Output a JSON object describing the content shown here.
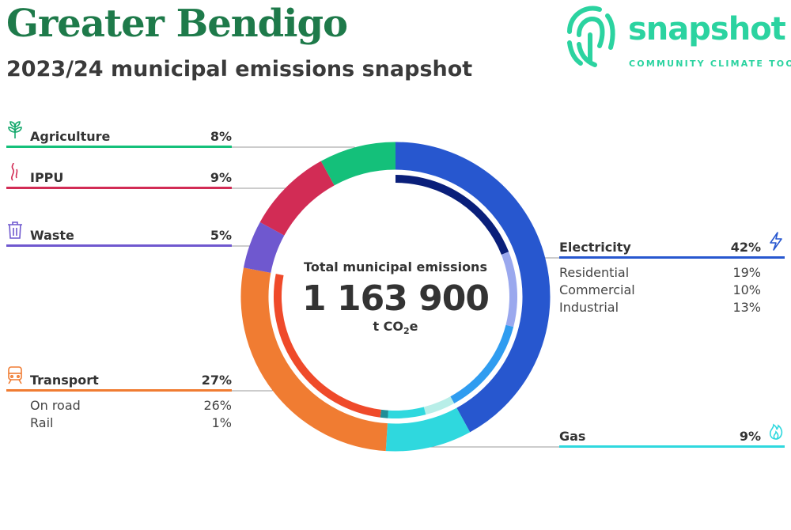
{
  "header": {
    "title": "Greater Bendigo",
    "subtitle": "2023/24 municipal emissions snapshot"
  },
  "logo": {
    "word": "snapshot",
    "tagline": "COMMUNITY CLIMATE TOOL",
    "icon": "fingerprint-icon",
    "color": "#2bd3a0"
  },
  "center": {
    "label": "Total municipal emissions",
    "value": "1 163 900",
    "unit_prefix": "t CO",
    "unit_sub": "2",
    "unit_suffix": "e"
  },
  "chart_data": {
    "type": "donut",
    "title": "2023/24 municipal emissions snapshot",
    "total": "1 163 900",
    "unit": "t CO2e",
    "sectors": [
      {
        "name": "Electricity",
        "percent": 42,
        "color": "#2757cf",
        "icon": "lightning-icon",
        "subsectors": [
          {
            "name": "Residential",
            "percent": 19,
            "color": "#0a1f7a"
          },
          {
            "name": "Commercial",
            "percent": 10,
            "color": "#9aa8ee"
          },
          {
            "name": "Industrial",
            "percent": 13,
            "color": "#2f9cf0"
          }
        ]
      },
      {
        "name": "Gas",
        "percent": 9,
        "color": "#2fd8de",
        "icon": "flame-icon",
        "subsectors": [
          {
            "name": "",
            "percent": 4,
            "color": "#b8eee8"
          },
          {
            "name": "",
            "percent": 5,
            "color": "#2fd8de"
          }
        ]
      },
      {
        "name": "Transport",
        "percent": 27,
        "color": "#f07c32",
        "icon": "train-icon",
        "subsectors": [
          {
            "name": "Rail",
            "percent": 1,
            "color": "#1f8f98"
          },
          {
            "name": "On road",
            "percent": 26,
            "color": "#ef4a2a"
          }
        ]
      },
      {
        "name": "Waste",
        "percent": 5,
        "color": "#6f58cf",
        "icon": "bin-icon",
        "subsectors": []
      },
      {
        "name": "IPPU",
        "percent": 9,
        "color": "#d22c55",
        "icon": "smoke-icon",
        "subsectors": []
      },
      {
        "name": "Agriculture",
        "percent": 8,
        "color": "#14c07a",
        "icon": "sprout-icon",
        "subsectors": []
      }
    ]
  },
  "legend": {
    "agriculture": {
      "label": "Agriculture",
      "pct": "8%"
    },
    "ippu": {
      "label": "IPPU",
      "pct": "9%"
    },
    "waste": {
      "label": "Waste",
      "pct": "5%"
    },
    "transport": {
      "label": "Transport",
      "pct": "27%",
      "subs": [
        {
          "label": "On road",
          "pct": "26%"
        },
        {
          "label": "Rail",
          "pct": "1%"
        }
      ]
    },
    "electricity": {
      "label": "Electricity",
      "pct": "42%",
      "subs": [
        {
          "label": "Residential",
          "pct": "19%"
        },
        {
          "label": "Commercial",
          "pct": "10%"
        },
        {
          "label": "Industrial",
          "pct": "13%"
        }
      ]
    },
    "gas": {
      "label": "Gas",
      "pct": "9%"
    }
  }
}
